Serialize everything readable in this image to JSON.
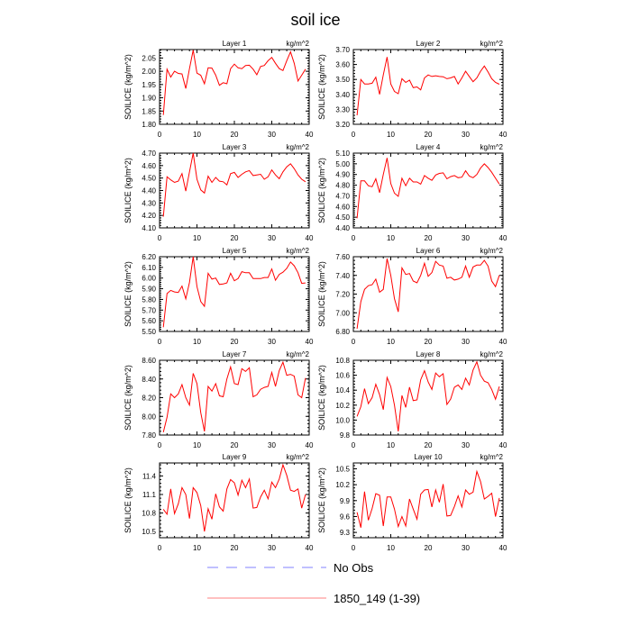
{
  "title": "soil ice",
  "colors": {
    "series": "#ff0000",
    "obs": "#8080ff",
    "axis": "#000000"
  },
  "legend": [
    {
      "label": "No Obs",
      "style": "dashed",
      "color": "#8080ff"
    },
    {
      "label": "1850_149 (1-39)",
      "style": "solid",
      "color": "#ff8080"
    }
  ],
  "chart_data": [
    {
      "type": "line",
      "title": "Layer 1",
      "units": "kg/m^2",
      "ylabel": "SOILICE  (kg/m^2)",
      "xlim": [
        0,
        40
      ],
      "xticks": [
        0,
        10,
        20,
        30,
        40
      ],
      "ylim": [
        1.8,
        2.082
      ],
      "yticks": [
        "1.80",
        "1.85",
        "1.90",
        "1.95",
        "2.00",
        "2.05"
      ],
      "values": [
        1.835,
        2.008,
        1.978,
        2.0,
        1.992,
        1.99,
        1.935,
        2.01,
        2.08,
        1.993,
        1.985,
        1.953,
        2.013,
        2.012,
        1.985,
        1.947,
        1.957,
        1.953,
        2.01,
        2.027,
        2.013,
        2.01,
        2.022,
        2.023,
        2.008,
        1.987,
        2.018,
        2.022,
        2.04,
        2.052,
        2.03,
        2.01,
        2.003,
        2.04,
        2.073,
        2.03,
        1.963,
        1.985,
        2.008
      ]
    },
    {
      "type": "line",
      "title": "Layer 2",
      "units": "kg/m^2",
      "ylabel": "SOILICE  (kg/m^2)",
      "xlim": [
        0,
        40
      ],
      "xticks": [
        0,
        10,
        20,
        30,
        40
      ],
      "ylim": [
        3.2,
        3.7
      ],
      "yticks": [
        "3.20",
        "3.30",
        "3.40",
        "3.50",
        "3.60",
        "3.70"
      ],
      "values": [
        3.26,
        3.5,
        3.47,
        3.47,
        3.475,
        3.515,
        3.4,
        3.53,
        3.65,
        3.47,
        3.42,
        3.405,
        3.505,
        3.48,
        3.495,
        3.445,
        3.45,
        3.43,
        3.51,
        3.53,
        3.52,
        3.525,
        3.52,
        3.518,
        3.505,
        3.51,
        3.52,
        3.47,
        3.51,
        3.555,
        3.52,
        3.485,
        3.51,
        3.555,
        3.59,
        3.55,
        3.505,
        3.48,
        3.468
      ]
    },
    {
      "type": "line",
      "title": "Layer 3",
      "units": "kg/m^2",
      "ylabel": "SOILICE  (kg/m^2)",
      "xlim": [
        0,
        40
      ],
      "xticks": [
        0,
        10,
        20,
        30,
        40
      ],
      "ylim": [
        4.1,
        4.7
      ],
      "yticks": [
        "4.10",
        "4.20",
        "4.30",
        "4.40",
        "4.50",
        "4.60",
        "4.70"
      ],
      "values": [
        4.19,
        4.51,
        4.485,
        4.465,
        4.475,
        4.535,
        4.395,
        4.55,
        4.7,
        4.49,
        4.405,
        4.38,
        4.515,
        4.465,
        4.505,
        4.475,
        4.47,
        4.445,
        4.535,
        4.545,
        4.505,
        4.53,
        4.55,
        4.56,
        4.52,
        4.525,
        4.53,
        4.49,
        4.51,
        4.565,
        4.525,
        4.495,
        4.55,
        4.59,
        4.615,
        4.575,
        4.525,
        4.49,
        4.47
      ]
    },
    {
      "type": "line",
      "title": "Layer 4",
      "units": "kg/m^2",
      "ylabel": "SOILICE  (kg/m^2)",
      "xlim": [
        0,
        40
      ],
      "xticks": [
        0,
        10,
        20,
        30,
        40
      ],
      "ylim": [
        4.4,
        5.1
      ],
      "yticks": [
        "4.40",
        "4.50",
        "4.60",
        "4.70",
        "4.80",
        "4.90",
        "5.00",
        "5.10"
      ],
      "values": [
        4.49,
        4.84,
        4.84,
        4.795,
        4.785,
        4.86,
        4.73,
        4.9,
        5.055,
        4.815,
        4.725,
        4.695,
        4.865,
        4.795,
        4.865,
        4.83,
        4.83,
        4.81,
        4.89,
        4.865,
        4.845,
        4.895,
        4.91,
        4.915,
        4.86,
        4.88,
        4.89,
        4.87,
        4.875,
        4.935,
        4.885,
        4.87,
        4.9,
        4.96,
        5.0,
        4.965,
        4.92,
        4.865,
        4.81
      ]
    },
    {
      "type": "line",
      "title": "Layer 5",
      "units": "kg/m^2",
      "ylabel": "SOILICE  (kg/m^2)",
      "xlim": [
        0,
        40
      ],
      "xticks": [
        0,
        10,
        20,
        30,
        40
      ],
      "ylim": [
        5.5,
        6.2
      ],
      "yticks": [
        "5.50",
        "5.60",
        "5.70",
        "5.80",
        "5.90",
        "6.00",
        "6.10",
        "6.20"
      ],
      "values": [
        5.54,
        5.855,
        5.885,
        5.87,
        5.865,
        5.925,
        5.805,
        5.96,
        6.2,
        5.92,
        5.78,
        5.735,
        6.045,
        5.99,
        6.0,
        5.94,
        5.945,
        5.955,
        6.045,
        5.975,
        5.995,
        6.06,
        6.05,
        6.05,
        5.995,
        5.995,
        5.995,
        6.005,
        6.005,
        6.085,
        5.98,
        6.035,
        6.055,
        6.09,
        6.15,
        6.115,
        6.05,
        5.95,
        5.955
      ]
    },
    {
      "type": "line",
      "title": "Layer 6",
      "units": "kg/m^2",
      "ylabel": "SOILICE  (kg/m^2)",
      "xlim": [
        0,
        40
      ],
      "xticks": [
        0,
        10,
        20,
        30,
        40
      ],
      "ylim": [
        6.8,
        7.6
      ],
      "yticks": [
        "6.80",
        "7.00",
        "7.20",
        "7.40",
        "7.60"
      ],
      "values": [
        6.83,
        7.12,
        7.25,
        7.29,
        7.3,
        7.36,
        7.22,
        7.25,
        7.58,
        7.4,
        7.15,
        7.01,
        7.48,
        7.41,
        7.42,
        7.34,
        7.32,
        7.4,
        7.53,
        7.39,
        7.43,
        7.55,
        7.51,
        7.5,
        7.37,
        7.38,
        7.35,
        7.36,
        7.38,
        7.5,
        7.38,
        7.49,
        7.51,
        7.51,
        7.56,
        7.5,
        7.34,
        7.28,
        7.4
      ]
    },
    {
      "type": "line",
      "title": "Layer 7",
      "units": "kg/m^2",
      "ylabel": "SOILICE  (kg/m^2)",
      "xlim": [
        0,
        40
      ],
      "xticks": [
        0,
        10,
        20,
        30,
        40
      ],
      "ylim": [
        7.8,
        8.6
      ],
      "yticks": [
        "7.80",
        "8.00",
        "8.20",
        "8.40",
        "8.60"
      ],
      "values": [
        7.83,
        7.99,
        8.24,
        8.2,
        8.24,
        8.34,
        8.2,
        8.12,
        8.46,
        8.35,
        8.04,
        7.84,
        8.32,
        8.27,
        8.35,
        8.22,
        8.21,
        8.4,
        8.53,
        8.35,
        8.34,
        8.51,
        8.48,
        8.52,
        8.21,
        8.23,
        8.29,
        8.31,
        8.32,
        8.47,
        8.32,
        8.49,
        8.58,
        8.44,
        8.45,
        8.43,
        8.23,
        8.2,
        8.41
      ]
    },
    {
      "type": "line",
      "title": "Layer 8",
      "units": "kg/m^2",
      "ylabel": "SOILICE  (kg/m^2)",
      "xlim": [
        0,
        40
      ],
      "xticks": [
        0,
        10,
        20,
        30,
        40
      ],
      "ylim": [
        9.8,
        10.8
      ],
      "yticks": [
        "9.8",
        "10.0",
        "10.2",
        "10.4",
        "10.6",
        "10.8"
      ],
      "values": [
        10.05,
        10.18,
        10.42,
        10.22,
        10.3,
        10.48,
        10.34,
        10.14,
        10.57,
        10.45,
        10.2,
        9.85,
        10.33,
        10.17,
        10.44,
        10.26,
        10.27,
        10.54,
        10.66,
        10.51,
        10.41,
        10.63,
        10.58,
        10.62,
        10.21,
        10.28,
        10.44,
        10.47,
        10.41,
        10.56,
        10.47,
        10.67,
        10.78,
        10.6,
        10.52,
        10.5,
        10.41,
        10.28,
        10.45
      ]
    },
    {
      "type": "line",
      "title": "Layer 9",
      "units": "kg/m^2",
      "ylabel": "SOILICE  (kg/m^2)",
      "xlim": [
        0,
        40
      ],
      "xticks": [
        0,
        10,
        20,
        30,
        40
      ],
      "ylim": [
        10.4,
        11.61
      ],
      "yticks": [
        "10.5",
        "10.8",
        "11.1",
        "11.4"
      ],
      "values": [
        10.86,
        10.78,
        11.19,
        10.79,
        10.95,
        11.21,
        11.1,
        10.71,
        11.21,
        11.13,
        10.92,
        10.5,
        10.87,
        10.7,
        11.11,
        10.9,
        10.83,
        11.19,
        11.34,
        11.29,
        11.09,
        11.33,
        11.21,
        11.35,
        10.88,
        10.89,
        11.06,
        11.17,
        11.03,
        11.3,
        11.21,
        11.35,
        11.58,
        11.41,
        11.17,
        11.15,
        11.19,
        10.88,
        11.1
      ]
    },
    {
      "type": "line",
      "title": "Layer 10",
      "units": "kg/m^2",
      "ylabel": "SOILICE  (kg/m^2)",
      "xlim": [
        0,
        40
      ],
      "xticks": [
        0,
        10,
        20,
        30,
        40
      ],
      "ylim": [
        9.2,
        10.61
      ],
      "yticks": [
        "9.3",
        "9.6",
        "9.9",
        "10.2",
        "10.5"
      ],
      "values": [
        9.68,
        9.39,
        10.07,
        9.53,
        9.75,
        10.03,
        10.0,
        9.42,
        9.97,
        9.97,
        9.74,
        9.41,
        9.6,
        9.42,
        9.93,
        9.74,
        9.55,
        10.02,
        10.1,
        10.11,
        9.78,
        10.1,
        9.87,
        10.21,
        9.61,
        9.62,
        9.79,
        9.99,
        9.78,
        10.1,
        10.02,
        10.06,
        10.45,
        10.26,
        9.93,
        9.98,
        10.04,
        9.6,
        9.95
      ]
    }
  ]
}
